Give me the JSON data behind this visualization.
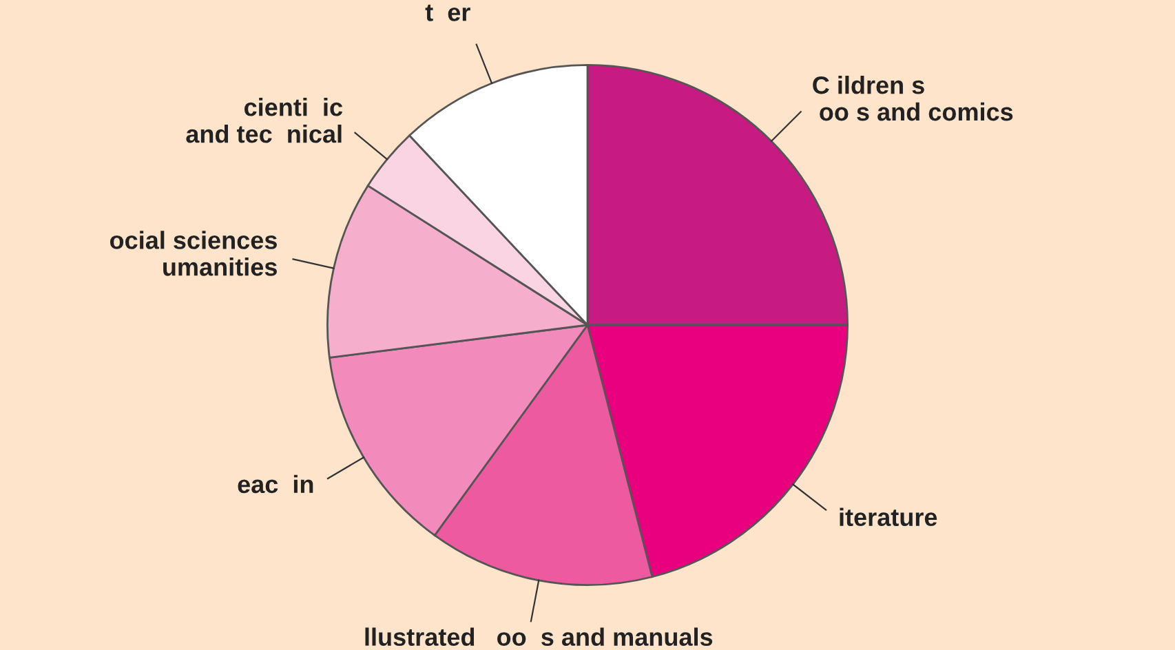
{
  "chart_data": {
    "type": "pie",
    "categories": [
      "C ildren s\n oo s and comics",
      "iterature",
      "llustrated   oo  s and manuals",
      "eac  in",
      "ocial sciences\numanities",
      "cienti  ic\nand tec  nical",
      "t  er"
    ],
    "values": [
      25,
      21,
      14,
      13,
      11,
      4,
      12
    ],
    "colors": [
      "#c81b81",
      "#e8007e",
      "#ee5aa0",
      "#f28bbb",
      "#f5afcc",
      "#fad4e2",
      "#ffffff"
    ],
    "legend": false
  }
}
